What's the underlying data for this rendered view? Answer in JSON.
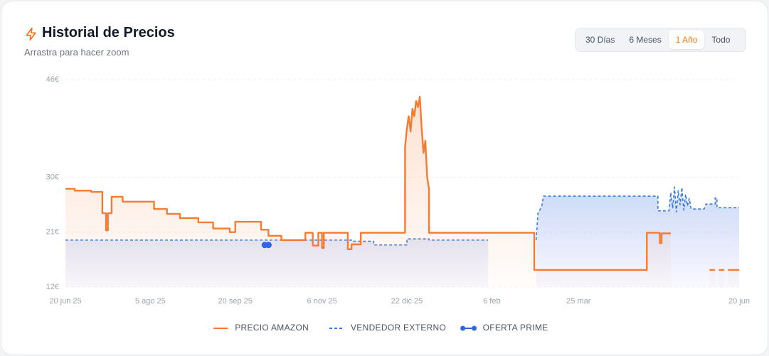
{
  "header": {
    "title": "Historial de Precios",
    "subtitle": "Arrastra para hacer zoom"
  },
  "range_buttons": [
    "30 Días",
    "6 Meses",
    "1 Año",
    "Todo"
  ],
  "active_range": 2,
  "chart_data": {
    "type": "line",
    "xlim": [
      0,
      365
    ],
    "xticks": [
      {
        "value": 0,
        "label": "20 jun 25"
      },
      {
        "value": 46,
        "label": "5 ago 25"
      },
      {
        "value": 92,
        "label": "20 sep 25"
      },
      {
        "value": 139,
        "label": "6 nov 25"
      },
      {
        "value": 185,
        "label": "22 dic 25"
      },
      {
        "value": 231,
        "label": "6 feb"
      },
      {
        "value": 278,
        "label": "25 mar"
      },
      {
        "value": 365,
        "label": "20 jun"
      }
    ],
    "ylim": [
      12,
      46
    ],
    "yticks": [
      {
        "value": 12,
        "label": "12€"
      },
      {
        "value": 21,
        "label": "21€"
      },
      {
        "value": 30,
        "label": "30€"
      },
      {
        "value": 46,
        "label": "46€"
      }
    ],
    "grid": true,
    "series": [
      {
        "name": "VENDEDOR EXTERNO",
        "color": "#3b7be0",
        "style": "dashed",
        "fill": true,
        "x": [
          0,
          155,
          155,
          167,
          167,
          185,
          185,
          197,
          197,
          229,
          240,
          255,
          256,
          258,
          259,
          321,
          321,
          327,
          328,
          329,
          330,
          331,
          332,
          333,
          334,
          335,
          336,
          337,
          338,
          339,
          346,
          347,
          352,
          352,
          353,
          353,
          365
        ],
        "values": [
          19.7,
          19.7,
          19.5,
          19.5,
          18.9,
          18.9,
          19.9,
          19.9,
          19.7,
          19.7,
          null,
          19.7,
          24.1,
          25.2,
          26.9,
          26.9,
          24.5,
          24.5,
          27.5,
          25.0,
          28.4,
          24.3,
          27.8,
          25.5,
          28.3,
          24.6,
          27.2,
          25.3,
          26.5,
          24.8,
          24.8,
          25.6,
          25.6,
          26.6,
          26.6,
          25.0,
          25.0
        ]
      },
      {
        "name": "PRECIO AMAZON",
        "color": "#f47b30",
        "style": "solid",
        "fill": true,
        "x": [
          0,
          5,
          5,
          14,
          14,
          20,
          20,
          22,
          22,
          23,
          23,
          25,
          25,
          31,
          31,
          48,
          48,
          55,
          55,
          62,
          62,
          72,
          72,
          80,
          80,
          89,
          89,
          92,
          92,
          106,
          106,
          110,
          110,
          117,
          117,
          130,
          130,
          134,
          134,
          137,
          137,
          139,
          139,
          140,
          140,
          153,
          153,
          155,
          155,
          160,
          160,
          184,
          184,
          185,
          186,
          187,
          188,
          189,
          190,
          191,
          192,
          193,
          194,
          195,
          196,
          197,
          197,
          254,
          254,
          315,
          315,
          322,
          322,
          323,
          323,
          328,
          340,
          349,
          352,
          353,
          354,
          357,
          358,
          359,
          365
        ],
        "values": [
          28.1,
          28.1,
          27.8,
          27.8,
          27.6,
          27.6,
          24.1,
          24.1,
          21.3,
          21.3,
          24.1,
          24.1,
          26.8,
          26.8,
          26.0,
          26.0,
          24.8,
          24.8,
          24.0,
          24.0,
          23.3,
          23.3,
          22.6,
          22.6,
          21.6,
          21.6,
          21.0,
          21.0,
          22.7,
          22.7,
          21.4,
          21.4,
          20.4,
          20.4,
          19.7,
          19.7,
          20.9,
          20.9,
          18.8,
          18.8,
          20.9,
          20.9,
          18.4,
          18.4,
          20.9,
          20.9,
          18.2,
          18.2,
          19.0,
          19.0,
          20.9,
          20.9,
          35.0,
          38.0,
          40.0,
          37.5,
          41.2,
          40.0,
          42.5,
          41.5,
          43.2,
          38.0,
          34.0,
          36.0,
          30.0,
          28.0,
          20.9,
          20.9,
          14.8,
          14.8,
          20.9,
          20.9,
          19.2,
          19.2,
          20.8,
          20.8,
          null,
          14.8,
          14.8,
          null,
          14.8,
          14.8,
          null,
          14.8,
          14.8
        ]
      },
      {
        "name": "OFERTA PRIME",
        "color": "#2f66e0",
        "style": "markers",
        "fill": false,
        "x": [
          108,
          110
        ],
        "values": [
          18.9,
          18.9
        ]
      }
    ]
  }
}
